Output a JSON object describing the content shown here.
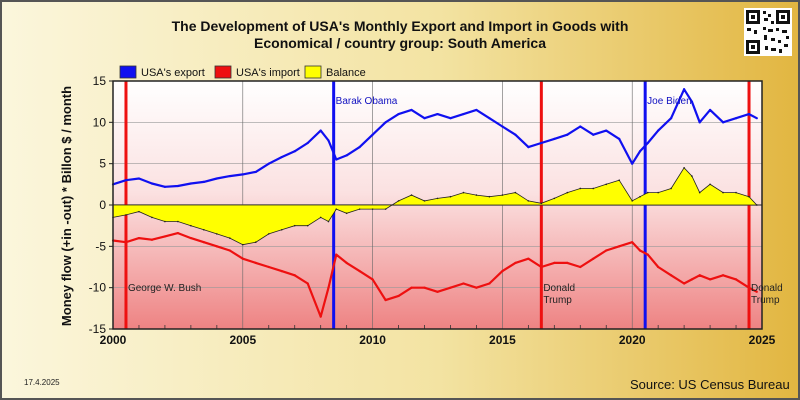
{
  "page": {
    "title_line1": "The Development of USA's Monthly Export and Import in Goods with",
    "title_line2": "Economical / country group: South America",
    "date": "17.4.2025",
    "source": "Source: US Census Bureau"
  },
  "chart_data": {
    "type": "line",
    "ylabel": "Money flow (+in -out) * Billon $ / month",
    "ylim": [
      -15,
      15
    ],
    "xlim": [
      2000,
      2025
    ],
    "y_ticks": [
      15,
      10,
      5,
      0,
      -5,
      -10,
      -15
    ],
    "x_ticks": [
      2000,
      2005,
      2010,
      2015,
      2020,
      2025
    ],
    "grid": true,
    "legend_position": "top-left",
    "legend": [
      {
        "label": "USA's export",
        "color": "#1010f0"
      },
      {
        "label": "USA's import",
        "color": "#ee1010"
      },
      {
        "label": "Balance",
        "color": "#ffff00"
      }
    ],
    "series": [
      {
        "name": "USA's export",
        "color": "#1010f0",
        "x": [
          2000,
          2000.5,
          2001,
          2001.5,
          2002,
          2002.5,
          2003,
          2003.5,
          2004,
          2004.5,
          2005,
          2005.5,
          2006,
          2006.5,
          2007,
          2007.5,
          2008,
          2008.3,
          2008.6,
          2009,
          2009.5,
          2010,
          2010.5,
          2011,
          2011.5,
          2012,
          2012.5,
          2013,
          2013.5,
          2014,
          2014.5,
          2015,
          2015.5,
          2016,
          2016.5,
          2017,
          2017.5,
          2018,
          2018.5,
          2019,
          2019.5,
          2020,
          2020.3,
          2020.6,
          2021,
          2021.5,
          2022,
          2022.3,
          2022.6,
          2023,
          2023.5,
          2024,
          2024.5,
          2024.8
        ],
        "values": [
          2.5,
          3.0,
          3.2,
          2.6,
          2.2,
          2.3,
          2.6,
          2.8,
          3.2,
          3.5,
          3.7,
          4.0,
          5.0,
          5.8,
          6.5,
          7.5,
          9.0,
          7.8,
          5.5,
          6.0,
          7.0,
          8.5,
          10.0,
          11.0,
          11.5,
          10.5,
          11.0,
          10.5,
          11.0,
          11.5,
          10.5,
          9.5,
          8.5,
          7.0,
          7.5,
          8.0,
          8.5,
          9.5,
          8.5,
          9.0,
          8.0,
          5.0,
          6.5,
          7.5,
          9.0,
          10.5,
          14.0,
          12.5,
          10.0,
          11.5,
          10.0,
          10.5,
          11.0,
          10.5
        ]
      },
      {
        "name": "USA's import",
        "color": "#ee1010",
        "x": [
          2000,
          2000.5,
          2001,
          2001.5,
          2002,
          2002.5,
          2003,
          2003.5,
          2004,
          2004.5,
          2005,
          2005.5,
          2006,
          2006.5,
          2007,
          2007.5,
          2008,
          2008.3,
          2008.6,
          2009,
          2009.5,
          2010,
          2010.5,
          2011,
          2011.5,
          2012,
          2012.5,
          2013,
          2013.5,
          2014,
          2014.5,
          2015,
          2015.5,
          2016,
          2016.5,
          2017,
          2017.5,
          2018,
          2018.5,
          2019,
          2019.5,
          2020,
          2020.3,
          2020.6,
          2021,
          2021.5,
          2022,
          2022.3,
          2022.6,
          2023,
          2023.5,
          2024,
          2024.5,
          2024.8
        ],
        "values": [
          -4.3,
          -4.5,
          -4.0,
          -4.2,
          -3.8,
          -3.4,
          -4.0,
          -4.5,
          -5.0,
          -5.5,
          -6.5,
          -7.0,
          -7.5,
          -8.0,
          -8.5,
          -9.5,
          -13.5,
          -10.0,
          -6.0,
          -7.0,
          -8.0,
          -9.0,
          -11.5,
          -11.0,
          -10.0,
          -10.0,
          -10.5,
          -10.0,
          -9.5,
          -10.0,
          -9.5,
          -8.0,
          -7.0,
          -6.5,
          -7.5,
          -7.0,
          -7.0,
          -7.5,
          -6.5,
          -5.5,
          -5.0,
          -4.5,
          -5.5,
          -6.0,
          -7.5,
          -8.5,
          -9.5,
          -9.0,
          -8.5,
          -9.0,
          -8.5,
          -9.0,
          -10.0,
          -10.5
        ]
      },
      {
        "name": "Balance",
        "color": "#ffff00",
        "x": [
          2000,
          2000.5,
          2001,
          2001.5,
          2002,
          2002.5,
          2003,
          2003.5,
          2004,
          2004.5,
          2005,
          2005.5,
          2006,
          2006.5,
          2007,
          2007.5,
          2008,
          2008.3,
          2008.6,
          2009,
          2009.5,
          2010,
          2010.5,
          2011,
          2011.5,
          2012,
          2012.5,
          2013,
          2013.5,
          2014,
          2014.5,
          2015,
          2015.5,
          2016,
          2016.5,
          2017,
          2017.5,
          2018,
          2018.5,
          2019,
          2019.5,
          2020,
          2020.3,
          2020.6,
          2021,
          2021.5,
          2022,
          2022.3,
          2022.6,
          2023,
          2023.5,
          2024,
          2024.5,
          2024.8
        ],
        "values": [
          -1.5,
          -1.2,
          -0.8,
          -1.5,
          -2.0,
          -2.0,
          -2.5,
          -3.0,
          -3.5,
          -4.0,
          -4.8,
          -4.5,
          -3.5,
          -3.0,
          -2.5,
          -2.5,
          -1.5,
          -2.0,
          -0.5,
          -1.0,
          -0.5,
          -0.5,
          -0.5,
          0.5,
          1.2,
          0.5,
          0.8,
          1.0,
          1.5,
          1.2,
          1.0,
          1.2,
          1.5,
          0.5,
          0.2,
          0.8,
          1.5,
          2.0,
          2.0,
          2.5,
          3.0,
          0.5,
          1.0,
          1.5,
          1.5,
          2.0,
          4.5,
          3.5,
          1.5,
          2.5,
          1.5,
          1.5,
          1.0,
          0.0
        ]
      }
    ],
    "events": [
      {
        "label": "George W. Bush",
        "x": 2000.5,
        "color": "#ee1010"
      },
      {
        "label": "Barak Obama",
        "x": 2008.5,
        "color": "#1010f0"
      },
      {
        "label": "Donald Trump",
        "x": 2016.5,
        "color": "#ee1010"
      },
      {
        "label": "Joe Biden",
        "x": 2020.5,
        "color": "#1010f0"
      },
      {
        "label": "Donald Trump",
        "x": 2024.5,
        "color": "#ee1010"
      }
    ]
  }
}
